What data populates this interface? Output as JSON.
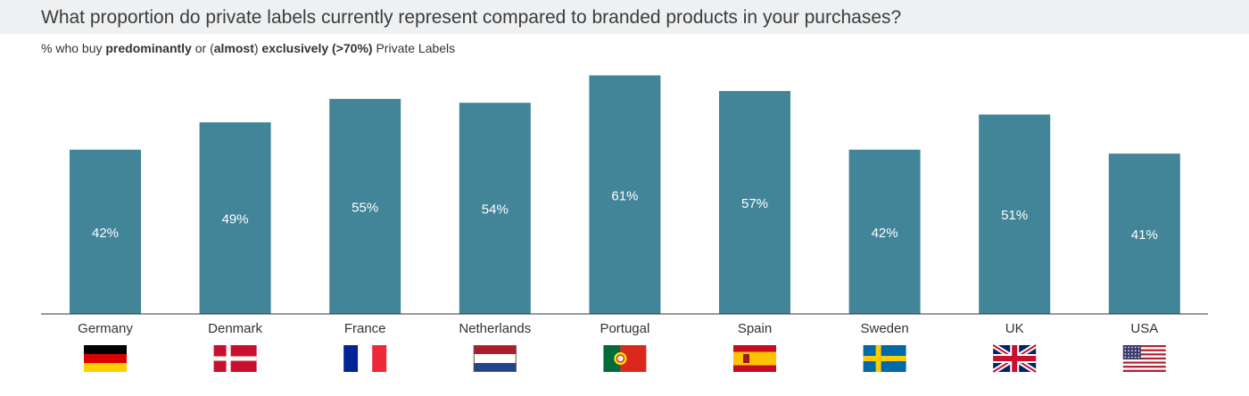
{
  "header": {
    "title": "What proportion do private labels currently represent compared to branded products in your purchases?",
    "subtitle_parts": [
      {
        "text": "% who buy ",
        "bold": false
      },
      {
        "text": "predominantly",
        "bold": true
      },
      {
        "text": " or (",
        "bold": false
      },
      {
        "text": "almost",
        "bold": true
      },
      {
        "text": ") ",
        "bold": false
      },
      {
        "text": "exclusively (>70%)",
        "bold": true
      },
      {
        "text": " Private Labels",
        "bold": false
      }
    ]
  },
  "colors": {
    "bar": "#428599",
    "baseline": "#333333",
    "header_band": "#eef0f2"
  },
  "chart_data": {
    "type": "bar",
    "categories": [
      "Germany",
      "Denmark",
      "France",
      "Netherlands",
      "Portugal",
      "Spain",
      "Sweden",
      "UK",
      "USA"
    ],
    "values": [
      42,
      49,
      55,
      54,
      61,
      57,
      42,
      51,
      41
    ],
    "value_labels": [
      "42%",
      "49%",
      "55%",
      "54%",
      "61%",
      "57%",
      "42%",
      "51%",
      "41%"
    ],
    "flags": [
      "flag-germany",
      "flag-denmark",
      "flag-france",
      "flag-netherlands",
      "flag-portugal",
      "flag-spain",
      "flag-sweden",
      "flag-uk",
      "flag-usa"
    ],
    "ylim": [
      0,
      65
    ],
    "grid": false,
    "legend": "none"
  }
}
